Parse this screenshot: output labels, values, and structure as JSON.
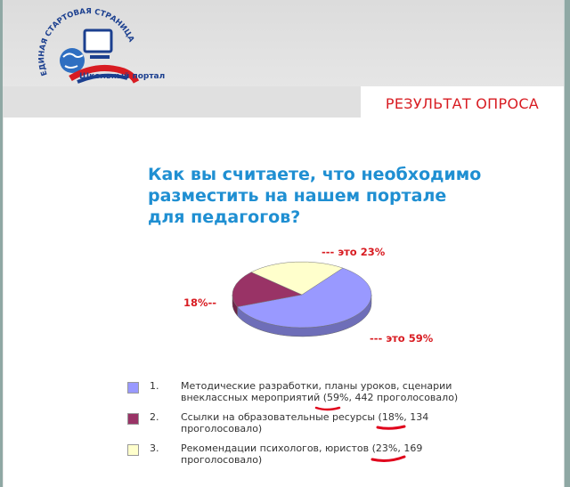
{
  "header": {
    "logo_arc_text": "ЕДИНАЯ СТАРТОВАЯ СТРАНИЦА",
    "logo_subtitle": "Школьный портал",
    "result_title": "РЕЗУЛЬТАТ ОПРОСА"
  },
  "poll": {
    "question": "Как вы считаете, что необходимо разместить на нашем портале для педагогов?",
    "slice_labels": [
      "--- это 59%",
      "18%--",
      "--- это 23%"
    ],
    "options": [
      {
        "number": "1.",
        "text": "Методические разработки, планы уроков, сценарии внеклассных мероприятий (59%, 442 проголосовало)",
        "color": "#9999ff"
      },
      {
        "number": "2.",
        "text": "Ссылки на образовательные ресурсы (18%, 134 проголосовало)",
        "color": "#993366"
      },
      {
        "number": "3.",
        "text": "Рекомендации психологов, юристов (23%, 169 проголосовало)",
        "color": "#ffffcc"
      }
    ]
  },
  "chart_data": {
    "type": "pie",
    "categories": [
      "1",
      "2",
      "3"
    ],
    "values": [
      59,
      18,
      23
    ],
    "colors": [
      "#9999ff",
      "#993366",
      "#ffffcc"
    ],
    "labels": [
      "--- это 59%",
      "18%--",
      "--- это 23%"
    ],
    "title": "Как вы считаете, что необходимо разместить на нашем портале для педагогов?"
  }
}
